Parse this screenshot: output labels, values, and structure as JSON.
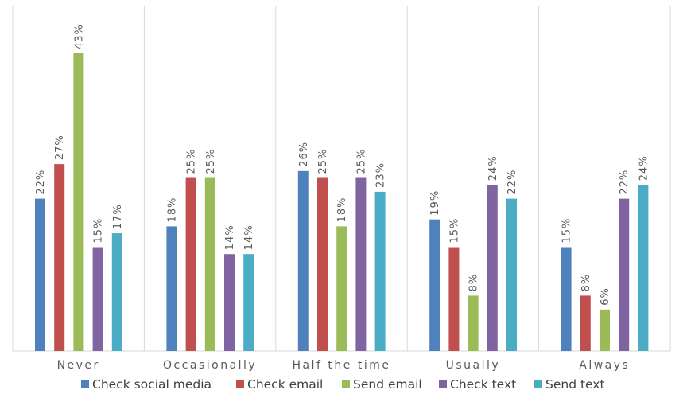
{
  "chart_data": {
    "type": "bar",
    "title": "",
    "xlabel": "",
    "ylabel": "",
    "ylim": [
      0,
      50
    ],
    "grid": false,
    "legend_position": "bottom",
    "value_format": "percent",
    "categories": [
      "Never",
      "Occasionally",
      "Half the time",
      "Usually",
      "Always"
    ],
    "series": [
      {
        "name": "Check social media",
        "color": "#4F81BD",
        "values": [
          22,
          18,
          26,
          19,
          15
        ]
      },
      {
        "name": "Check email",
        "color": "#C0504D",
        "values": [
          27,
          25,
          25,
          15,
          8
        ]
      },
      {
        "name": "Send email",
        "color": "#9BBB59",
        "values": [
          43,
          25,
          18,
          8,
          6
        ]
      },
      {
        "name": "Check text",
        "color": "#8064A2",
        "values": [
          15,
          14,
          25,
          24,
          22
        ]
      },
      {
        "name": "Send text",
        "color": "#4BACC6",
        "values": [
          17,
          14,
          23,
          22,
          24
        ]
      }
    ]
  }
}
